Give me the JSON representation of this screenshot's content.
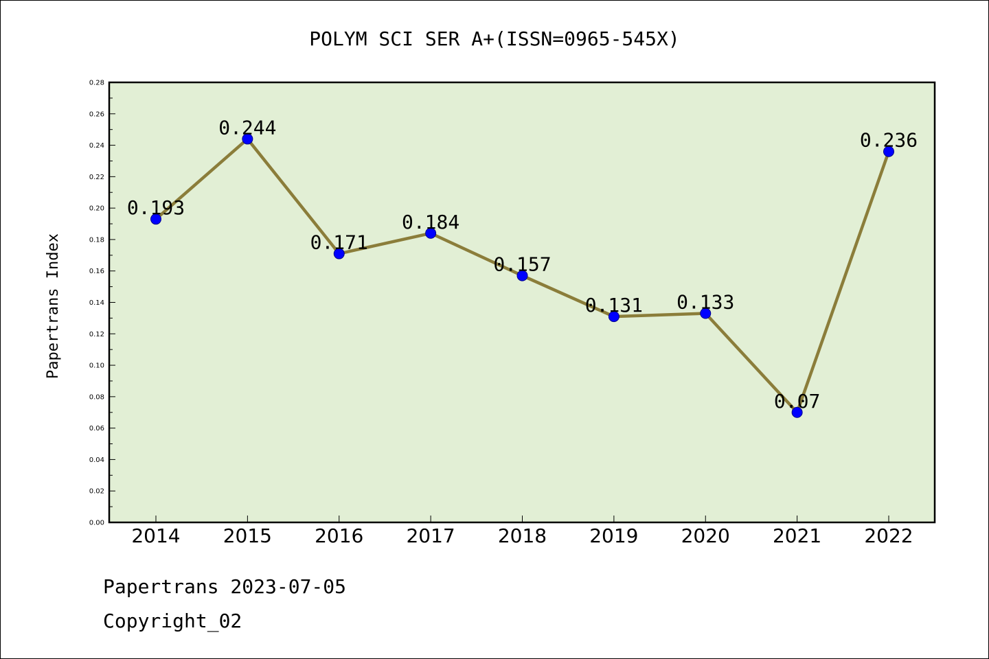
{
  "chart_data": {
    "type": "line",
    "title": "POLYM SCI SER A+(ISSN=0965-545X)",
    "xlabel": "",
    "ylabel": "Papertrans Index",
    "categories": [
      "2014",
      "2015",
      "2016",
      "2017",
      "2018",
      "2019",
      "2020",
      "2021",
      "2022"
    ],
    "values": [
      0.193,
      0.244,
      0.171,
      0.184,
      0.157,
      0.131,
      0.133,
      0.07,
      0.236
    ],
    "data_labels": [
      "0.193",
      "0.244",
      "0.171",
      "0.184",
      "0.157",
      "0.131",
      "0.133",
      "0.07",
      "0.236"
    ],
    "ylim": [
      0,
      0.28
    ],
    "yticks": [
      "0.00",
      "0.02",
      "0.04",
      "0.06",
      "0.08",
      "0.10",
      "0.12",
      "0.14",
      "0.16",
      "0.18",
      "0.20",
      "0.22",
      "0.24",
      "0.26",
      "0.28"
    ],
    "grid": false,
    "colors": {
      "plot_background": "#e2efd5",
      "line": "#8b7d3a",
      "marker": "#0000ff"
    }
  },
  "footer": {
    "line1": "Papertrans 2023-07-05",
    "line2": "Copyright_02"
  }
}
